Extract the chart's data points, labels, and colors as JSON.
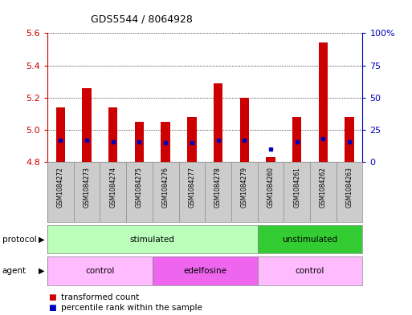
{
  "title": "GDS5544 / 8064928",
  "samples": [
    "GSM1084272",
    "GSM1084273",
    "GSM1084274",
    "GSM1084275",
    "GSM1084276",
    "GSM1084277",
    "GSM1084278",
    "GSM1084279",
    "GSM1084260",
    "GSM1084261",
    "GSM1084262",
    "GSM1084263"
  ],
  "transformed_count": [
    5.14,
    5.26,
    5.14,
    5.05,
    5.05,
    5.08,
    5.29,
    5.2,
    4.83,
    5.08,
    5.54,
    5.08
  ],
  "percentile_rank": [
    17,
    17,
    16,
    16,
    15,
    15,
    17,
    17,
    10,
    16,
    18,
    16
  ],
  "ylim_left": [
    4.8,
    5.6
  ],
  "ylim_right": [
    0,
    100
  ],
  "yticks_left": [
    4.8,
    5.0,
    5.2,
    5.4,
    5.6
  ],
  "yticks_right": [
    0,
    25,
    50,
    75,
    100
  ],
  "ytick_labels_right": [
    "0",
    "25",
    "50",
    "75",
    "100%"
  ],
  "bar_color": "#cc0000",
  "dot_color": "#0000bb",
  "bar_bottom": 4.8,
  "protocol_groups": [
    {
      "label": "stimulated",
      "start": 0,
      "end": 8,
      "color": "#bbffbb"
    },
    {
      "label": "unstimulated",
      "start": 8,
      "end": 12,
      "color": "#33cc33"
    }
  ],
  "agent_groups": [
    {
      "label": "control",
      "start": 0,
      "end": 4,
      "color": "#ffbbff"
    },
    {
      "label": "edelfosine",
      "start": 4,
      "end": 8,
      "color": "#ee66ee"
    },
    {
      "label": "control",
      "start": 8,
      "end": 12,
      "color": "#ffbbff"
    }
  ],
  "protocol_label": "protocol",
  "agent_label": "agent",
  "legend_items": [
    {
      "label": "transformed count",
      "color": "#cc0000"
    },
    {
      "label": "percentile rank within the sample",
      "color": "#0000bb"
    }
  ],
  "left_axis_color": "#cc0000",
  "right_axis_color": "#0000bb",
  "bg_color": "#ffffff",
  "sample_bg_color": "#cccccc"
}
